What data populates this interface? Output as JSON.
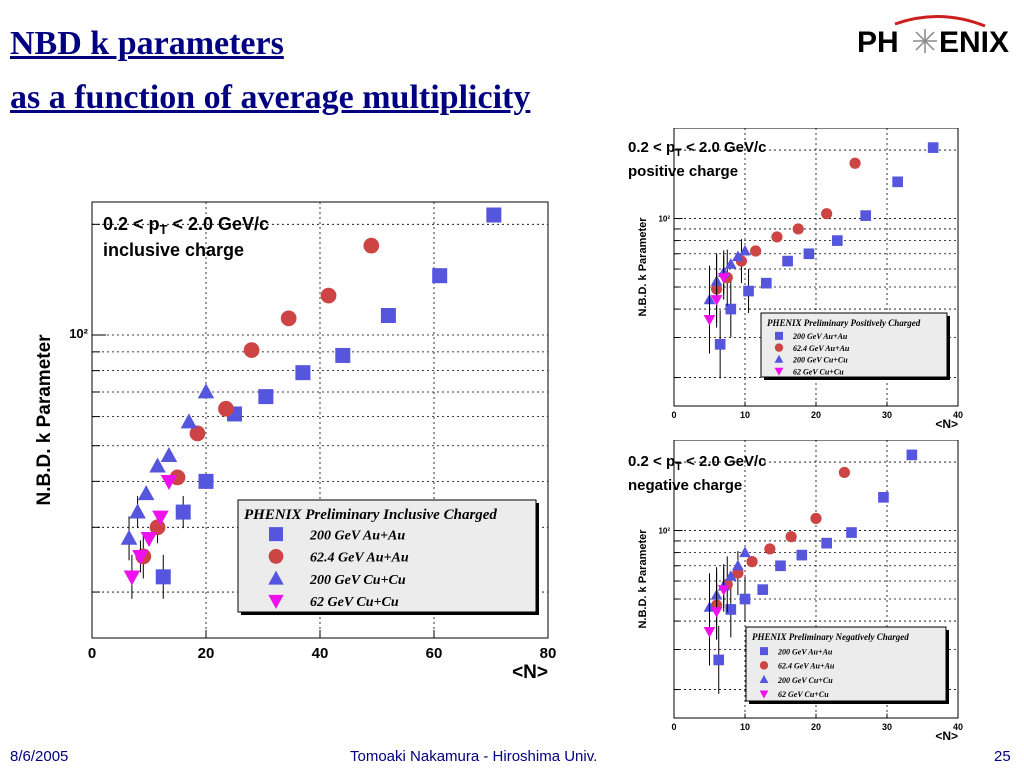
{
  "slide": {
    "title_line1": "NBD k parameters",
    "title_line2": "as a function of average multiplicity",
    "logo_text_left": "PH",
    "logo_text_right": "ENIX",
    "footer_date": "8/6/2005",
    "footer_author": "Tomoaki Nakamura - Hiroshima Univ.",
    "page_number": "25",
    "accent_color": "#000080",
    "logo_accent": "#cc2020"
  },
  "chart_data": [
    {
      "type": "scatter",
      "panel": "inclusive",
      "annotation_line1": "0.2 < p",
      "annotation_sub": "T",
      "annotation_line1b": " < 2.0 GeV/c",
      "annotation_line2": "inclusive charge",
      "xlabel": "<N>",
      "ylabel": "N.B.D. k Parameter",
      "xlim": [
        0,
        80
      ],
      "ylim": [
        15,
        230
      ],
      "yscale": "log",
      "x_ticks": [
        "0",
        "20",
        "40",
        "60",
        "80"
      ],
      "y_tick_label": "10²",
      "grid": true,
      "legend_title": "PHENIX Preliminary Inclusive Charged",
      "legend_position": "bottom-right",
      "series": [
        {
          "name": "200 GeV Au+Au",
          "marker": "square",
          "color": "#5555dd",
          "x": [
            12.5,
            16,
            20,
            25,
            30.5,
            37,
            44,
            52,
            61,
            70.5
          ],
          "y": [
            22,
            33,
            40,
            61,
            68,
            79,
            88,
            113,
            145,
            212
          ]
        },
        {
          "name": "62.4 GeV Au+Au",
          "marker": "circle",
          "color": "#cc4444",
          "x": [
            9,
            11.5,
            15,
            18.5,
            23.5,
            28,
            34.5,
            41.5,
            49
          ],
          "y": [
            25,
            30,
            41,
            54,
            63,
            91,
            111,
            128,
            175
          ]
        },
        {
          "name": "200 GeV Cu+Cu",
          "marker": "triangle-up",
          "color": "#5555dd",
          "x": [
            6.5,
            8,
            9.5,
            11.5,
            13.5,
            17,
            20
          ],
          "y": [
            28,
            33,
            37,
            44,
            47,
            58,
            70
          ]
        },
        {
          "name": "62 GeV Cu+Cu",
          "marker": "triangle-down",
          "color": "#ee11ee",
          "x": [
            7,
            8.5,
            10,
            12,
            13.5
          ],
          "y": [
            22,
            25,
            28,
            32,
            40
          ]
        }
      ]
    },
    {
      "type": "scatter",
      "panel": "positive",
      "annotation_line1": "0.2 < p",
      "annotation_sub": "T",
      "annotation_line1b": " < 2.0 GeV/c",
      "annotation_line2": "positive charge",
      "xlabel": "<N>",
      "ylabel": "N.B.D. k Parameter",
      "xlim": [
        0,
        40
      ],
      "ylim": [
        15,
        250
      ],
      "yscale": "log",
      "x_ticks": [
        "0",
        "10",
        "20",
        "30",
        "40"
      ],
      "y_tick_label": "10²",
      "grid": true,
      "legend_title": "PHENIX Preliminary Positively Charged",
      "legend_position": "bottom-right",
      "series": [
        {
          "name": "200 GeV Au+Au",
          "marker": "square",
          "color": "#5555dd",
          "x": [
            6.5,
            8,
            10.5,
            13,
            16,
            19,
            23,
            27,
            31.5,
            36.5
          ],
          "y": [
            28,
            40,
            48,
            52,
            65,
            70,
            80,
            103,
            145,
            205
          ]
        },
        {
          "name": "62.4 GeV Au+Au",
          "marker": "circle",
          "color": "#cc4444",
          "x": [
            6,
            7.5,
            9.5,
            11.5,
            14.5,
            17.5,
            21.5,
            25.5
          ],
          "y": [
            49,
            55,
            65,
            72,
            83,
            90,
            105,
            175
          ]
        },
        {
          "name": "200 GeV Cu+Cu",
          "marker": "triangle-up",
          "color": "#5555dd",
          "x": [
            5,
            6,
            7,
            8,
            9,
            10
          ],
          "y": [
            44,
            53,
            58,
            63,
            68,
            72
          ]
        },
        {
          "name": "62 GeV Cu+Cu",
          "marker": "triangle-down",
          "color": "#ee11ee",
          "x": [
            5,
            6,
            7
          ],
          "y": [
            36,
            44,
            55
          ]
        }
      ]
    },
    {
      "type": "scatter",
      "panel": "negative",
      "annotation_line1": "0.2 < p",
      "annotation_sub": "T",
      "annotation_line1b": " < 2.0 GeV/c",
      "annotation_line2": "negative charge",
      "xlabel": "<N>",
      "ylabel": "N.B.D. k Parameter",
      "xlim": [
        0,
        40
      ],
      "ylim": [
        15,
        250
      ],
      "yscale": "log",
      "x_ticks": [
        "0",
        "10",
        "20",
        "30",
        "40"
      ],
      "y_tick_label": "10²",
      "grid": true,
      "legend_title": "PHENIX Preliminary Negatively Charged",
      "legend_position": "bottom-right",
      "series": [
        {
          "name": "200 GeV Au+Au",
          "marker": "square",
          "color": "#5555dd",
          "x": [
            6.3,
            8,
            10,
            12.5,
            15,
            18,
            21.5,
            25,
            29.5,
            33.5
          ],
          "y": [
            27,
            45,
            50,
            55,
            70,
            78,
            88,
            98,
            140,
            215
          ]
        },
        {
          "name": "62.4 GeV Au+Au",
          "marker": "circle",
          "color": "#cc4444",
          "x": [
            6,
            7.5,
            9,
            11,
            13.5,
            16.5,
            20,
            24
          ],
          "y": [
            47,
            58,
            65,
            73,
            83,
            94,
            113,
            180
          ]
        },
        {
          "name": "200 GeV Cu+Cu",
          "marker": "triangle-up",
          "color": "#5555dd",
          "x": [
            5,
            6,
            7,
            8,
            9,
            10
          ],
          "y": [
            46,
            52,
            57,
            63,
            70,
            80
          ]
        },
        {
          "name": "62 GeV Cu+Cu",
          "marker": "triangle-down",
          "color": "#ee11ee",
          "x": [
            5,
            6,
            7
          ],
          "y": [
            36,
            44,
            55
          ]
        }
      ]
    }
  ]
}
